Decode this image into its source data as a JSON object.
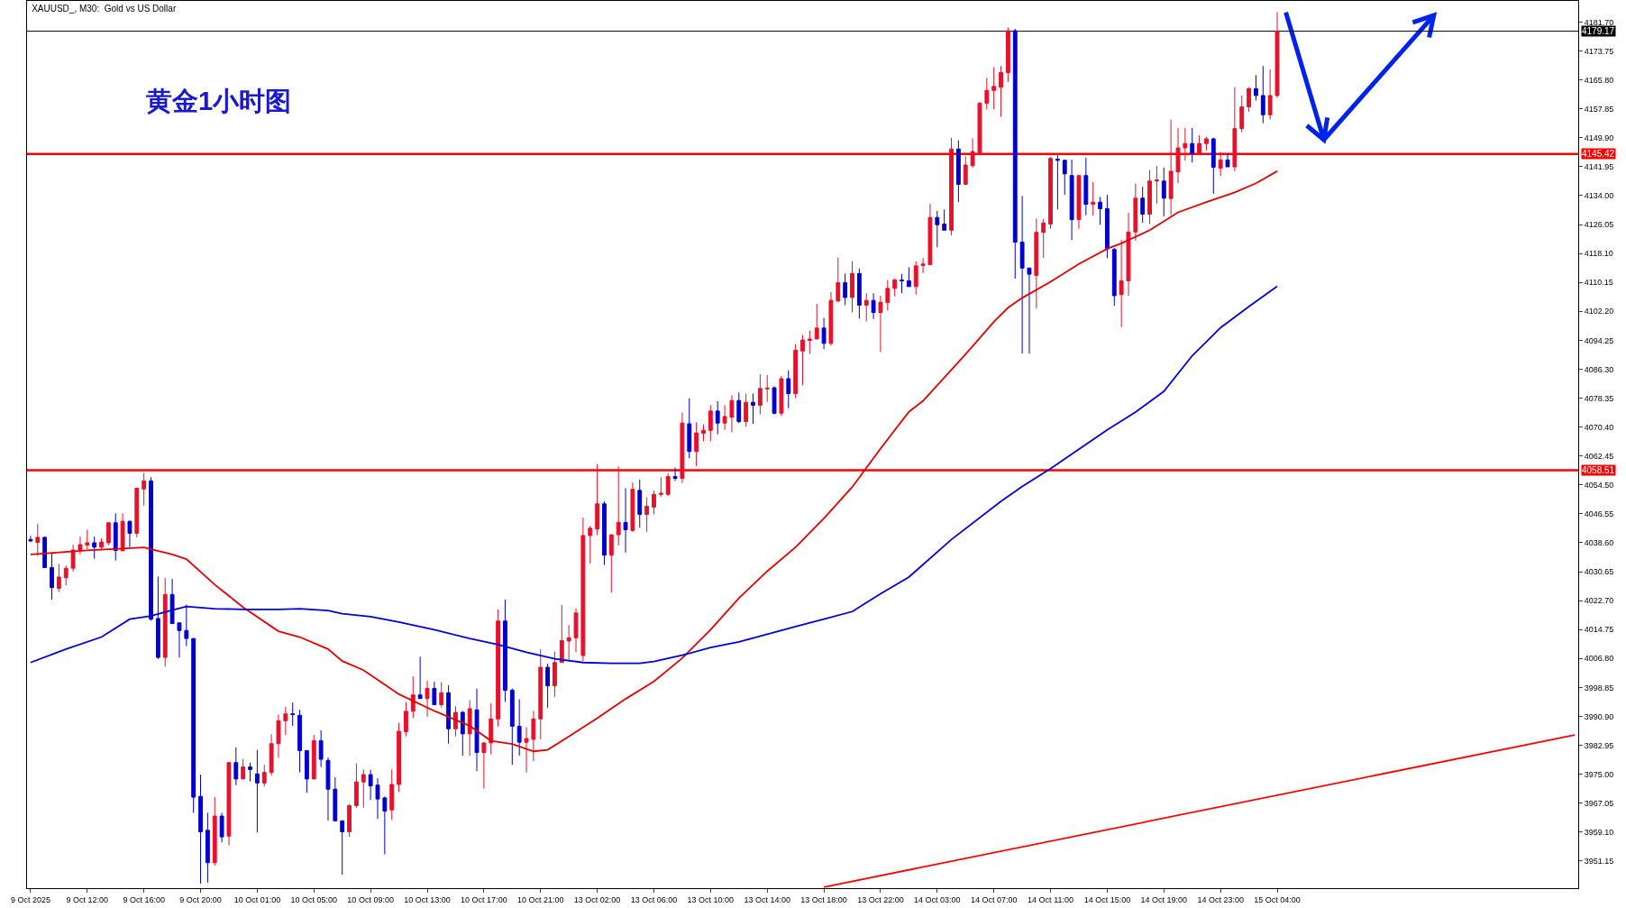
{
  "chart_data": {
    "type": "candlestick",
    "title": "XAUUSD_, M30:  Gold vs US Dollar",
    "annotations": [
      "黄金1小时图"
    ],
    "categories": [
      "9 Oct 2025",
      null,
      null,
      null,
      null,
      null,
      null,
      null,
      "9 Oct 12:00",
      null,
      null,
      null,
      null,
      null,
      null,
      null,
      "9 Oct 16:00",
      null,
      null,
      null,
      null,
      null,
      null,
      null,
      "9 Oct 20:00",
      null,
      null,
      null,
      null,
      null,
      null,
      null,
      "10 Oct 01:00",
      null,
      null,
      null,
      null,
      null,
      null,
      null,
      "10 Oct 05:00",
      null,
      null,
      null,
      null,
      null,
      null,
      null,
      "10 Oct 09:00",
      null,
      null,
      null,
      null,
      null,
      null,
      null,
      "10 Oct 13:00",
      null,
      null,
      null,
      null,
      null,
      null,
      null,
      "10 Oct 17:00",
      null,
      null,
      null,
      null,
      null,
      null,
      null,
      "10 Oct 21:00",
      null,
      null,
      null,
      null,
      null,
      null,
      null,
      "13 Oct 02:00",
      null,
      null,
      null,
      null,
      null,
      null,
      null,
      "13 Oct 06:00",
      null,
      null,
      null,
      null,
      null,
      null,
      null,
      "13 Oct 10:00",
      null,
      null,
      null,
      null,
      null,
      null,
      null,
      "13 Oct 14:00",
      null,
      null,
      null,
      null,
      null,
      null,
      null,
      "13 Oct 18:00",
      null,
      null,
      null,
      null,
      null,
      null,
      null,
      "13 Oct 22:00",
      null,
      null,
      null,
      null,
      null,
      null,
      null,
      "14 Oct 03:00",
      null,
      null,
      null,
      null,
      null,
      null,
      null,
      "14 Oct 07:00",
      null,
      null,
      null,
      null,
      null,
      null,
      null,
      "14 Oct 11:00",
      null,
      null,
      null,
      null,
      null,
      null,
      null,
      "14 Oct 15:00",
      null,
      null,
      null,
      null,
      null,
      null,
      null,
      "14 Oct 19:00",
      null,
      null,
      null,
      null,
      null,
      null,
      null,
      "14 Oct 23:00",
      null,
      null,
      null,
      null,
      null,
      null,
      null,
      "15 Oct 04:00",
      null,
      null,
      null,
      null,
      null,
      null,
      null,
      null,
      null,
      null,
      null,
      null,
      null,
      null,
      null,
      null,
      null,
      null,
      null,
      null,
      null,
      null,
      null,
      null,
      null,
      null,
      null,
      null,
      null,
      null,
      null,
      null,
      null,
      null,
      null,
      null,
      null,
      null,
      null,
      null,
      null,
      null
    ],
    "colors": [
      "#0000d0",
      "#e8102a",
      "#0000d0",
      "#0000d0",
      "#e8102a",
      "#e8102a",
      "#e8102a",
      "#e8102a",
      "#e8102a",
      "#0000d0",
      "#e8102a",
      "#e8102a",
      "#0000d0",
      "#e8102a",
      "#0000d0",
      "#e8102a",
      "#e8102a",
      "#0000d0",
      "#0000d0",
      "#e8102a",
      "#0000d0",
      "#0000d0",
      "#0000d0",
      "#0000d0",
      "#0000d0",
      "#0000d0",
      "#e8102a",
      "#0000d0",
      "#e8102a",
      "#0000d0",
      "#e8102a",
      "#0000d0",
      "#0000d0",
      "#e8102a",
      "#e8102a",
      "#e8102a",
      "#e8102a",
      "#0000d0",
      "#0000d0",
      "#0000d0",
      "#e8102a",
      "#0000d0",
      "#0000d0",
      "#0000d0",
      "#0000d0",
      "#e8102a",
      "#e8102a",
      "#e8102a",
      "#0000d0",
      "#0000d0",
      "#0000d0",
      "#e8102a",
      "#e8102a",
      "#e8102a",
      "#e8102a",
      "#0000d0",
      "#e8102a",
      "#0000d0",
      "#e8102a",
      "#0000d0",
      "#e8102a",
      "#0000d0",
      "#e8102a",
      "#0000d0",
      "#e8102a",
      "#e8102a",
      "#e8102a",
      "#0000d0",
      "#0000d0",
      "#0000d0",
      "#e8102a",
      "#e8102a",
      "#e8102a",
      "#0000d0",
      "#e8102a",
      "#e8102a",
      "#e8102a",
      "#e8102a",
      "#e8102a",
      "#e8102a",
      "#e8102a",
      "#0000d0",
      "#e8102a",
      "#e8102a",
      "#0000d0",
      "#e8102a",
      "#0000d0",
      "#e8102a",
      "#e8102a",
      "#e8102a",
      "#e8102a",
      "#0000d0",
      "#e8102a",
      "#0000d0",
      "#e8102a",
      "#e8102a",
      "#e8102a",
      "#0000d0",
      "#e8102a",
      "#e8102a",
      "#0000d0",
      "#e8102a",
      "#0000d0",
      "#e8102a",
      "#e8102a",
      "#0000d0",
      "#e8102a",
      "#0000d0",
      "#e8102a",
      "#e8102a",
      "#e8102a",
      "#e8102a",
      "#0000d0",
      "#e8102a",
      "#e8102a",
      "#0000d0",
      "#e8102a",
      "#0000d0",
      "#e8102a",
      "#0000d0",
      "#e8102a",
      "#e8102a",
      "#e8102a",
      "#0000d0",
      "#0000d0",
      "#e8102a",
      "#e8102a",
      "#e8102a",
      "#0000d0",
      "#0000d0",
      "#e8102a",
      "#0000d0",
      "#e8102a",
      "#e8102a",
      "#e8102a",
      "#e8102a",
      "#e8102a",
      "#e8102a",
      "#e8102a",
      "#0000d0",
      "#0000d0",
      "#0000d0",
      "#e8102a",
      "#e8102a",
      "#e8102a",
      "#0000d0",
      "#0000d0",
      "#0000d0",
      "#e8102a",
      "#0000d0",
      "#e8102a",
      "#0000d0",
      "#0000d0",
      "#0000d0",
      "#e8102a",
      "#e8102a",
      "#e8102a",
      "#0000d0",
      "#e8102a",
      "#e8102a",
      "#0000d0",
      "#e8102a",
      "#e8102a",
      "#e8102a",
      "#0000d0",
      "#e8102a",
      "#e8102a",
      "#0000d0",
      "#e8102a",
      "#0000d0",
      "#e8102a",
      "#e8102a",
      "#e8102a",
      "#0000d0",
      "#0000d0",
      "#e8102a",
      "#e8102a",
      null,
      null,
      null,
      null,
      null,
      null,
      null,
      null,
      null,
      null,
      null,
      null,
      null,
      null,
      null,
      null,
      null,
      null,
      null,
      null,
      null,
      null,
      null,
      null,
      null,
      null,
      null,
      null,
      null,
      null,
      null,
      null,
      null,
      null,
      null,
      null,
      null,
      null,
      null,
      null,
      null,
      null
    ],
    "ohlc": [
      [
        4039.5,
        4040.5,
        4038.8,
        4039.1
      ],
      [
        4038.7,
        4043.8,
        4035.0,
        4040.1
      ],
      [
        4040.1,
        4040.3,
        4031.7,
        4031.8
      ],
      [
        4031.8,
        4036.0,
        4023.0,
        4026.3
      ],
      [
        4026.1,
        4032.8,
        4025.1,
        4029.2
      ],
      [
        4029.0,
        4032.4,
        4026.9,
        4031.6
      ],
      [
        4031.6,
        4038.1,
        4030.7,
        4036.6
      ],
      [
        4036.6,
        4040.3,
        4035.4,
        4038.1
      ],
      [
        4038.0,
        4042.2,
        4036.8,
        4038.6
      ],
      [
        4038.6,
        4040.3,
        4034.2,
        4037.4
      ],
      [
        4037.4,
        4039.8,
        4036.5,
        4038.8
      ],
      [
        4038.6,
        4044.2,
        4037.9,
        4044.1
      ],
      [
        4044.1,
        4046.7,
        4033.7,
        4036.5
      ],
      [
        4036.4,
        4046.7,
        4036.3,
        4044.5
      ],
      [
        4044.5,
        4044.7,
        4037.4,
        4041.2
      ],
      [
        4041.2,
        4053.6,
        4040.1,
        4053.6
      ],
      [
        4053.4,
        4057.8,
        4048.8,
        4055.6
      ],
      [
        4055.6,
        4056.6,
        4017.2,
        4017.6
      ],
      [
        4017.8,
        4029.3,
        4006.7,
        4007.1
      ],
      [
        4007.1,
        4028.9,
        4004.6,
        4024.4
      ],
      [
        4024.4,
        4028.7,
        4016.4,
        4016.4
      ],
      [
        4016.6,
        4016.6,
        4007.1,
        4014.5
      ],
      [
        4014.5,
        4021.6,
        4010.2,
        4012.3
      ],
      [
        4012.3,
        4012.3,
        3964.4,
        3968.7
      ],
      [
        3968.9,
        3974.9,
        3945.0,
        3959.2
      ],
      [
        3959.6,
        3964.4,
        3945.2,
        3950.7
      ],
      [
        3950.7,
        3968.7,
        3949.9,
        3963.5
      ],
      [
        3963.5,
        3964.4,
        3956.3,
        3957.8
      ],
      [
        3958.0,
        3978.2,
        3955.5,
        3978.2
      ],
      [
        3978.2,
        3982.4,
        3972.0,
        3973.7
      ],
      [
        3973.7,
        3979.2,
        3973.7,
        3977.0
      ],
      [
        3977.0,
        3978.2,
        3973.0,
        3976.3
      ],
      [
        3975.1,
        3981.7,
        3959.0,
        3972.6
      ],
      [
        3972.6,
        3977.6,
        3971.6,
        3975.5
      ],
      [
        3975.5,
        3986.0,
        3974.7,
        3983.4
      ],
      [
        3983.4,
        3991.4,
        3979.5,
        3989.7
      ],
      [
        3989.7,
        3993.5,
        3985.8,
        3991.6
      ],
      [
        3991.6,
        3994.7,
        3988.3,
        3991.4
      ],
      [
        3991.2,
        3992.7,
        3975.5,
        3981.5
      ],
      [
        3981.5,
        3981.5,
        3969.9,
        3973.7
      ],
      [
        3973.7,
        3985.8,
        3973.7,
        3984.2
      ],
      [
        3984.2,
        3987.1,
        3977.0,
        3979.1
      ],
      [
        3978.8,
        3979.6,
        3962.3,
        3970.9
      ],
      [
        3970.9,
        3974.2,
        3962.2,
        3962.2
      ],
      [
        3962.2,
        3962.2,
        3947.4,
        3959.2
      ],
      [
        3959.2,
        3966.8,
        3957.8,
        3966.4
      ],
      [
        3966.4,
        3978.0,
        3965.8,
        3972.9
      ],
      [
        3972.9,
        3976.3,
        3965.8,
        3974.9
      ],
      [
        3974.9,
        3976.2,
        3967.9,
        3971.8
      ],
      [
        3972.0,
        3973.9,
        3962.7,
        3968.2
      ],
      [
        3968.5,
        3968.9,
        3953.0,
        3964.9
      ],
      [
        3965.2,
        3976.3,
        3962.5,
        3972.2
      ],
      [
        3972.2,
        3989.1,
        3970.1,
        3986.8
      ],
      [
        3986.7,
        3994.8,
        3985.4,
        3992.3
      ],
      [
        3992.3,
        4001.9,
        3990.4,
        3996.8
      ],
      [
        3996.8,
        4007.3,
        3995.8,
        3995.8
      ],
      [
        3995.8,
        4000.7,
        3990.8,
        3998.6
      ],
      [
        3998.6,
        4000.4,
        3994.1,
        3994.1
      ],
      [
        3994.1,
        4000.3,
        3993.3,
        3997.4
      ],
      [
        3997.4,
        3999.5,
        3983.4,
        3987.5
      ],
      [
        3987.5,
        3993.7,
        3985.4,
        3992.0
      ],
      [
        3992.0,
        3992.4,
        3980.1,
        3986.1
      ],
      [
        3986.1,
        3995.3,
        3980.1,
        3993.0
      ],
      [
        3992.7,
        3998.5,
        3975.9,
        3981.0
      ],
      [
        3981.0,
        3983.8,
        3971.1,
        3983.6
      ],
      [
        3983.6,
        3994.5,
        3980.5,
        3990.2
      ],
      [
        3990.2,
        4020.3,
        3988.1,
        4017.1
      ],
      [
        4017.1,
        4023.0,
        3994.9,
        3998.1
      ],
      [
        3998.1,
        3998.6,
        3977.6,
        3988.2
      ],
      [
        3988.2,
        3995.6,
        3980.1,
        3983.8
      ],
      [
        3983.8,
        3987.9,
        3975.5,
        3984.8
      ],
      [
        3984.6,
        3992.4,
        3978.6,
        3990.2
      ],
      [
        3990.2,
        4009.4,
        3984.6,
        4004.4
      ],
      [
        4004.4,
        4005.4,
        3993.3,
        3999.3
      ],
      [
        3999.3,
        4008.7,
        3996.2,
        4005.7
      ],
      [
        4005.7,
        4021.5,
        4005.7,
        4011.7
      ],
      [
        4011.6,
        4016.0,
        4006.5,
        4012.5
      ],
      [
        4012.5,
        4020.5,
        4008.5,
        4019.3
      ],
      [
        4007.6,
        4045.5,
        4006.1,
        4040.6
      ],
      [
        4040.6,
        4043.2,
        4032.9,
        4042.6
      ],
      [
        4042.4,
        4060.2,
        4040.7,
        4049.3
      ],
      [
        4049.3,
        4050.0,
        4032.5,
        4035.2
      ],
      [
        4035.2,
        4040.8,
        4024.9,
        4040.8
      ],
      [
        4040.8,
        4059.6,
        4037.9,
        4044.2
      ],
      [
        4044.2,
        4053.6,
        4035.9,
        4042.2
      ],
      [
        4042.0,
        4055.2,
        4041.6,
        4053.3
      ],
      [
        4053.0,
        4056.0,
        4042.8,
        4046.4
      ],
      [
        4046.4,
        4051.1,
        4041.6,
        4048.6
      ],
      [
        4048.4,
        4053.0,
        4046.4,
        4051.9
      ],
      [
        4051.9,
        4056.6,
        4051.3,
        4052.2
      ],
      [
        4051.9,
        4057.7,
        4051.5,
        4056.8
      ],
      [
        4056.8,
        4059.3,
        4055.6,
        4056.3
      ],
      [
        4056.3,
        4074.4,
        4055.0,
        4071.5
      ],
      [
        4071.3,
        4078.3,
        4061.8,
        4063.7
      ],
      [
        4063.7,
        4071.7,
        4059.7,
        4068.8
      ],
      [
        4068.7,
        4071.1,
        4066.5,
        4069.5
      ],
      [
        4069.5,
        4076.4,
        4066.5,
        4074.8
      ],
      [
        4074.8,
        4077.5,
        4068.4,
        4071.5
      ],
      [
        4071.5,
        4076.4,
        4069.6,
        4073.3
      ],
      [
        4073.1,
        4079.1,
        4069.0,
        4077.7
      ],
      [
        4077.7,
        4079.9,
        4071.5,
        4071.9
      ],
      [
        4071.9,
        4079.6,
        4070.5,
        4077.2
      ],
      [
        4077.2,
        4079.6,
        4071.3,
        4076.4
      ],
      [
        4076.4,
        4084.9,
        4073.9,
        4081.0
      ],
      [
        4080.9,
        4084.7,
        4077.3,
        4081.1
      ],
      [
        4081.2,
        4081.6,
        4073.9,
        4074.2
      ],
      [
        4074.2,
        4084.4,
        4073.4,
        4083.7
      ],
      [
        4083.7,
        4086.0,
        4075.6,
        4079.6
      ],
      [
        4079.6,
        4093.2,
        4078.3,
        4091.5
      ],
      [
        4091.3,
        4095.7,
        4081.9,
        4094.3
      ],
      [
        4094.2,
        4096.9,
        4090.5,
        4094.6
      ],
      [
        4094.6,
        4104.2,
        4094.6,
        4097.6
      ],
      [
        4097.6,
        4100.4,
        4091.8,
        4093.4
      ],
      [
        4093.4,
        4107.5,
        4092.8,
        4105.2
      ],
      [
        4105.0,
        4117.0,
        4105.0,
        4110.1
      ],
      [
        4110.1,
        4112.6,
        4103.9,
        4106.0
      ],
      [
        4106.0,
        4116.0,
        4101.9,
        4112.6
      ],
      [
        4112.6,
        4114.0,
        4100.2,
        4103.9
      ],
      [
        4103.9,
        4107.2,
        4099.4,
        4105.2
      ],
      [
        4105.2,
        4107.2,
        4100.1,
        4101.9
      ],
      [
        4101.9,
        4106.5,
        4091.0,
        4104.7
      ],
      [
        4104.6,
        4110.8,
        4102.4,
        4108.5
      ],
      [
        4108.5,
        4111.2,
        4106.3,
        4110.8
      ],
      [
        4110.8,
        4112.5,
        4107.2,
        4110.6
      ],
      [
        4110.6,
        4114.3,
        4109.0,
        4109.0
      ],
      [
        4109.0,
        4115.9,
        4106.8,
        4114.7
      ],
      [
        4114.8,
        4116.8,
        4112.7,
        4115.2
      ],
      [
        4115.0,
        4131.8,
        4115.0,
        4128.0
      ],
      [
        4128.0,
        4129.8,
        4119.8,
        4126.0
      ],
      [
        4126.2,
        4130.2,
        4124.5,
        4124.5
      ],
      [
        4124.5,
        4149.9,
        4123.1,
        4146.8
      ],
      [
        4146.8,
        4149.2,
        4132.2,
        4137.1
      ],
      [
        4137.1,
        4144.8,
        4136.9,
        4142.4
      ],
      [
        4142.2,
        4149.7,
        4141.7,
        4146.1
      ],
      [
        4145.7,
        4159.6,
        4145.3,
        4159.4
      ],
      [
        4159.4,
        4166.3,
        4157.7,
        4162.9
      ],
      [
        4162.9,
        4169.3,
        4157.7,
        4164.0
      ],
      [
        4163.8,
        4169.6,
        4155.7,
        4167.8
      ],
      [
        4167.8,
        4180.2,
        4165.2,
        4179.3
      ],
      [
        4179.3,
        4179.8,
        4111.2,
        4121.2
      ],
      [
        4121.2,
        4133.9,
        4090.6,
        4114.1
      ],
      [
        4114.1,
        4114.1,
        4090.6,
        4112.4
      ],
      [
        4112.1,
        4127.7,
        4103.0,
        4123.9
      ],
      [
        4123.9,
        4127.6,
        4116.9,
        4126.5
      ],
      [
        4126.2,
        4144.6,
        4124.9,
        4144.2
      ],
      [
        4144.0,
        4145.1,
        4130.2,
        4143.7
      ],
      [
        4143.7,
        4143.9,
        4134.2,
        4140.0
      ],
      [
        4139.5,
        4143.9,
        4121.8,
        4127.4
      ],
      [
        4127.4,
        4139.5,
        4124.9,
        4139.5
      ],
      [
        4139.5,
        4144.4,
        4128.6,
        4131.6
      ],
      [
        4131.6,
        4137.7,
        4128.5,
        4132.2
      ],
      [
        4132.2,
        4133.6,
        4126.0,
        4130.4
      ],
      [
        4130.4,
        4134.2,
        4116.8,
        4119.4
      ],
      [
        4119.2,
        4119.6,
        4103.7,
        4106.5
      ],
      [
        4106.8,
        4121.8,
        4097.9,
        4110.6
      ],
      [
        4110.6,
        4129.3,
        4106.5,
        4124.0
      ],
      [
        4124.0,
        4137.3,
        4121.6,
        4133.3
      ],
      [
        4133.3,
        4136.4,
        4126.5,
        4128.9
      ],
      [
        4128.9,
        4141.0,
        4126.2,
        4138.0
      ],
      [
        4138.0,
        4142.2,
        4131.8,
        4138.3
      ],
      [
        4138.0,
        4141.7,
        4128.3,
        4133.3
      ],
      [
        4133.2,
        4154.9,
        4128.7,
        4140.7
      ],
      [
        4140.5,
        4152.6,
        4137.4,
        4147.1
      ],
      [
        4147.1,
        4152.6,
        4143.6,
        4148.3
      ],
      [
        4148.3,
        4152.6,
        4143.1,
        4145.6
      ],
      [
        4145.5,
        4150.6,
        4145.2,
        4148.3
      ],
      [
        4148.3,
        4150.2,
        4146.4,
        4149.6
      ],
      [
        4149.6,
        4149.9,
        4134.5,
        4141.8
      ],
      [
        4141.5,
        4146.0,
        4139.4,
        4143.8
      ],
      [
        4143.8,
        4145.5,
        4141.9,
        4141.9
      ],
      [
        4141.9,
        4163.8,
        4140.7,
        4152.4
      ],
      [
        4152.4,
        4161.5,
        4151.4,
        4158.4
      ],
      [
        4158.4,
        4163.8,
        4157.0,
        4163.4
      ],
      [
        4163.4,
        4167.1,
        4160.1,
        4161.5
      ],
      [
        4161.5,
        4169.6,
        4153.9,
        4156.2
      ],
      [
        4156.2,
        4168.7,
        4154.9,
        4161.5
      ],
      [
        4161.5,
        4184.4,
        4160.9,
        4179.17
      ],
      null,
      null,
      null,
      null,
      null,
      null,
      null,
      null,
      null,
      null,
      null,
      null,
      null,
      null,
      null,
      null,
      null,
      null,
      null,
      null,
      null,
      null,
      null,
      null,
      null,
      null,
      null,
      null,
      null,
      null,
      null,
      null,
      null,
      null,
      null,
      null,
      null,
      null,
      null,
      null,
      null,
      null
    ],
    "series": [
      {
        "type": "line",
        "color": "#e60000",
        "values": [
          4035.4,
          null,
          null,
          null,
          null,
          null,
          null,
          null,
          4036.5,
          null,
          null,
          null,
          null,
          null,
          null,
          null,
          4037.3,
          null,
          null,
          null,
          4035.4,
          null,
          4034.1,
          null,
          null,
          null,
          4027.1,
          null,
          null,
          null,
          4020.9,
          null,
          null,
          null,
          null,
          4014.3,
          null,
          null,
          4012.7,
          null,
          null,
          null,
          4009.4,
          null,
          4006.1,
          null,
          null,
          4003.6,
          null,
          null,
          null,
          null,
          3997.0,
          null,
          null,
          null,
          null,
          3992.4,
          null,
          null,
          null,
          null,
          3988.3,
          null,
          null,
          3984.2,
          null,
          null,
          3983.3,
          null,
          null,
          3981.3,
          null,
          3981.7,
          null,
          null,
          3985.4,
          null,
          null,
          null,
          3990.4,
          null,
          null,
          null,
          3995.7,
          null,
          null,
          null,
          4000.5,
          null,
          null,
          null,
          4006.9,
          null,
          null,
          null,
          4014.7,
          null,
          null,
          null,
          4023.4,
          null,
          null,
          null,
          4030.8,
          null,
          null,
          null,
          4037.4,
          null,
          null,
          null,
          4045.3,
          null,
          null,
          null,
          4053.9,
          null,
          null,
          null,
          4064.5,
          null,
          null,
          null,
          4074.6,
          null,
          4077.6,
          null,
          null,
          null,
          null,
          null,
          4090.4,
          null,
          null,
          null,
          4099.3,
          null,
          4103.2,
          null,
          4105.9,
          null,
          null,
          null,
          4110.3,
          null,
          null,
          null,
          4115.2,
          null,
          null,
          null,
          4119.4,
          null,
          4120.9,
          null,
          null,
          null,
          4124.5,
          null,
          null,
          null,
          4129.4,
          null,
          null,
          null,
          4132.2,
          null,
          null,
          null,
          4134.9,
          null,
          null,
          4137.4,
          null,
          null,
          4140.7,
          null,
          null,
          null,
          null,
          null,
          null,
          null,
          null,
          null,
          null,
          null,
          null,
          null,
          null,
          null,
          null,
          null,
          null,
          null,
          null,
          null,
          null,
          null,
          null,
          null,
          null,
          null,
          null,
          null,
          null,
          null,
          null,
          null,
          null,
          null,
          null,
          null,
          null,
          null,
          null,
          null,
          null
        ]
      },
      {
        "type": "line",
        "color": "#0000dd",
        "values": [
          4005.7,
          null,
          null,
          null,
          null,
          4009.4,
          null,
          null,
          null,
          null,
          4012.7,
          null,
          null,
          null,
          4017.6,
          null,
          null,
          4018.5,
          null,
          null,
          4020.1,
          null,
          4021.1,
          null,
          null,
          null,
          4020.5,
          null,
          null,
          null,
          4020.3,
          null,
          null,
          null,
          null,
          4020.3,
          null,
          null,
          4020.5,
          null,
          null,
          null,
          4020.0,
          null,
          4019.1,
          null,
          null,
          null,
          4018.3,
          null,
          null,
          null,
          4016.8,
          null,
          null,
          null,
          null,
          4014.7,
          null,
          null,
          null,
          null,
          4012.3,
          null,
          null,
          null,
          4010.6,
          null,
          null,
          null,
          4008.5,
          null,
          null,
          null,
          4006.7,
          null,
          null,
          null,
          4005.7,
          null,
          null,
          null,
          4005.5,
          null,
          null,
          null,
          4005.5,
          null,
          4006.0,
          null,
          null,
          null,
          4007.7,
          null,
          null,
          null,
          4009.8,
          null,
          null,
          null,
          4011.4,
          null,
          null,
          null,
          4013.5,
          null,
          null,
          null,
          4015.6,
          null,
          null,
          null,
          4017.6,
          null,
          null,
          null,
          4019.7,
          null,
          null,
          null,
          4024.6,
          null,
          null,
          null,
          4029.2,
          null,
          null,
          null,
          null,
          null,
          4039.5,
          null,
          null,
          null,
          null,
          null,
          null,
          4050.0,
          null,
          null,
          4054.1,
          null,
          null,
          null,
          4059.0,
          null,
          null,
          null,
          4064.3,
          null,
          null,
          null,
          4069.6,
          null,
          null,
          null,
          4074.5,
          null,
          null,
          null,
          4080.2,
          null,
          null,
          null,
          4090.0,
          null,
          null,
          null,
          4097.7,
          null,
          null,
          null,
          4103.5,
          null,
          null,
          null,
          4109.1,
          null,
          null,
          null,
          null,
          null,
          null,
          null,
          null,
          null,
          null,
          null,
          null,
          null,
          null,
          null,
          null,
          null,
          null,
          null,
          null,
          null,
          null,
          null,
          null,
          null,
          null,
          null,
          null,
          null,
          null,
          null,
          null,
          null,
          null,
          null,
          null,
          null,
          null,
          null,
          null,
          null,
          null
        ]
      },
      {
        "type": "line",
        "color": "#ff0000",
        "values": [
          null,
          null,
          null,
          null,
          null,
          null,
          null,
          null,
          null,
          null,
          null,
          null,
          null,
          null,
          null,
          null,
          null,
          null,
          null,
          null,
          null,
          null,
          null,
          null,
          null,
          null,
          null,
          null,
          null,
          null,
          null,
          null,
          null,
          null,
          null,
          null,
          null,
          null,
          null,
          null,
          null,
          null,
          null,
          null,
          null,
          null,
          null,
          null,
          null,
          null,
          null,
          null,
          null,
          null,
          null,
          null,
          null,
          null,
          null,
          null,
          null,
          null,
          null,
          null,
          null,
          null,
          null,
          null,
          null,
          null,
          null,
          null,
          null,
          null,
          null,
          null,
          null,
          null,
          null,
          null,
          null,
          null,
          null,
          null,
          null,
          null,
          null,
          null,
          null,
          null,
          null,
          null,
          null,
          null,
          null,
          null,
          null,
          null,
          null,
          null,
          null,
          null,
          null,
          null,
          null,
          null,
          null,
          null,
          null,
          null,
          null,
          null,
          3944.0,
          null,
          null,
          null,
          null,
          null,
          null,
          null,
          null,
          null,
          null,
          null,
          null,
          null,
          null,
          null,
          null,
          null,
          null,
          null,
          null,
          null,
          null,
          null,
          null,
          null,
          null,
          null,
          null,
          null,
          null,
          null,
          null,
          null,
          null,
          null,
          null,
          null,
          null,
          null,
          null,
          null,
          null,
          null,
          null,
          null,
          null,
          null,
          null,
          null,
          null,
          null,
          null,
          null,
          null,
          null,
          null,
          null,
          null,
          null,
          null,
          null,
          null,
          null,
          null,
          null,
          null,
          null,
          null,
          null,
          null,
          null,
          null,
          null,
          null,
          null,
          null,
          null,
          null,
          null,
          null,
          null,
          null,
          null,
          null,
          null,
          null,
          null,
          null,
          null,
          null,
          null,
          null,
          null,
          null,
          null,
          null,
          null,
          null,
          null,
          null,
          null,
          null,
          null,
          null,
          null,
          3985.8
        ]
      }
    ],
    "ref_lines": [
      {
        "axis": "y",
        "value": 4145.42,
        "label": "4145.42",
        "color": "#ff0000"
      },
      {
        "axis": "y",
        "value": 4058.51,
        "label": "4058.51",
        "color": "#ff0000"
      },
      {
        "axis": "y",
        "value": 4179.17,
        "label": "4179.17",
        "color": "#000000"
      }
    ],
    "ylim": [
      3943.7,
      4187.5
    ],
    "yticks": [
      {
        "value": 3951.15,
        "label": "3951.15"
      },
      {
        "value": 3959.1,
        "label": "3959.10"
      },
      {
        "value": 3967.05,
        "label": "3967.05"
      },
      {
        "value": 3975.0,
        "label": "3975.00"
      },
      {
        "value": 3982.95,
        "label": "3982.95"
      },
      {
        "value": 3990.9,
        "label": "3990.90"
      },
      {
        "value": 3998.85,
        "label": "3998.85"
      },
      {
        "value": 4006.8,
        "label": "4006.80"
      },
      {
        "value": 4014.75,
        "label": "4014.75"
      },
      {
        "value": 4022.7,
        "label": "4022.70"
      },
      {
        "value": 4030.65,
        "label": "4030.65"
      },
      {
        "value": 4038.6,
        "label": "4038.60"
      },
      {
        "value": 4046.55,
        "label": "4046.55"
      },
      {
        "value": 4054.5,
        "label": "4054.50"
      },
      {
        "value": 4062.45,
        "label": "4062.45"
      },
      {
        "value": 4070.4,
        "label": "4070.40"
      },
      {
        "value": 4078.35,
        "label": "4078.35"
      },
      {
        "value": 4086.3,
        "label": "4086.30"
      },
      {
        "value": 4094.25,
        "label": "4094.25"
      },
      {
        "value": 4102.2,
        "label": "4102.20"
      },
      {
        "value": 4110.15,
        "label": "4110.15"
      },
      {
        "value": 4118.1,
        "label": "4118.10"
      },
      {
        "value": 4126.05,
        "label": "4126.05"
      },
      {
        "value": 4134.0,
        "label": "4134.00"
      },
      {
        "value": 4141.95,
        "label": "4141.95"
      },
      {
        "value": 4149.9,
        "label": "4149.90"
      },
      {
        "value": 4157.85,
        "label": "4157.85"
      },
      {
        "value": 4165.8,
        "label": "4165.80"
      },
      {
        "value": 4173.75,
        "label": "4173.75"
      },
      {
        "value": 4181.7,
        "label": "4181.70"
      }
    ],
    "grid": false
  }
}
